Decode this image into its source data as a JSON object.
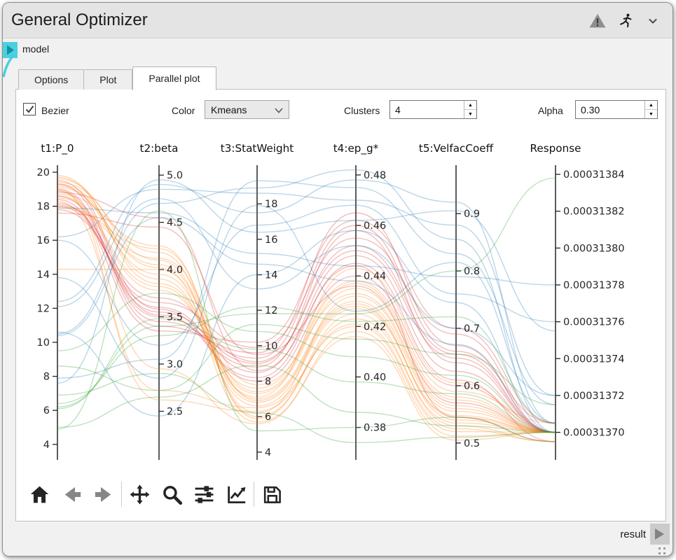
{
  "window": {
    "title": "General Optimizer"
  },
  "titlebar_icons": [
    {
      "name": "warning-icon",
      "color": "#8f8f8f"
    },
    {
      "name": "run-icon",
      "color": "#1a1a1a"
    },
    {
      "name": "collapse-chevron-icon",
      "color": "#4a4a4a"
    }
  ],
  "node": {
    "input_port_label": "model",
    "output_port_label": "result",
    "port_in_color": "#48d1e0",
    "port_in_arrow": "#178fa2",
    "port_out_color": "#cbcbcb",
    "port_out_arrow": "#828282"
  },
  "tabs": [
    {
      "label": "Options",
      "active": false
    },
    {
      "label": "Plot",
      "active": false
    },
    {
      "label": "Parallel plot",
      "active": true
    }
  ],
  "controls": {
    "bezier_label": "Bezier",
    "bezier_checked": true,
    "color_label": "Color",
    "color_value": "Kmeans",
    "clusters_label": "Clusters",
    "clusters_value": "4",
    "alpha_label": "Alpha",
    "alpha_value": "0.30"
  },
  "toolbar": {
    "buttons": [
      {
        "name": "home",
        "enabled": true
      },
      {
        "name": "back",
        "enabled": false
      },
      {
        "name": "forward",
        "enabled": false
      },
      {
        "name": "sep"
      },
      {
        "name": "pan",
        "enabled": true
      },
      {
        "name": "zoom",
        "enabled": true
      },
      {
        "name": "configure-subplots",
        "enabled": true
      },
      {
        "name": "customize",
        "enabled": true
      },
      {
        "name": "sep"
      },
      {
        "name": "save",
        "enabled": true
      }
    ]
  },
  "chart_data": {
    "type": "parallel-coordinates",
    "bezier": true,
    "line_alpha": 0.3,
    "cluster_colors": {
      "blue": "#1f77b4",
      "orange": "#ff7f0e",
      "green": "#2ca02c",
      "red": "#d62728"
    },
    "axes": [
      {
        "title": "t1:P_0",
        "side": "left",
        "min": 3.17,
        "max": 20.33,
        "ticks": [
          4,
          6,
          8,
          10,
          12,
          14,
          16,
          18,
          20
        ],
        "tick_labels": [
          "4",
          "6",
          "8",
          "10",
          "12",
          "14",
          "16",
          "18",
          "20"
        ]
      },
      {
        "title": "t2:beta",
        "side": "right",
        "min": 2.0,
        "max": 5.09,
        "ticks": [
          2.5,
          3.0,
          3.5,
          4.0,
          4.5,
          5.0
        ],
        "tick_labels": [
          "2.5",
          "3.0",
          "3.5",
          "4.0",
          "4.5",
          "5.0"
        ]
      },
      {
        "title": "t3:StatWeight",
        "side": "right",
        "min": 3.64,
        "max": 20.1,
        "ticks": [
          4,
          6,
          8,
          10,
          12,
          14,
          16,
          18
        ],
        "tick_labels": [
          "4",
          "6",
          "8",
          "10",
          "12",
          "14",
          "16",
          "18"
        ]
      },
      {
        "title": "t4:ep_g*",
        "side": "right",
        "min": 0.3677,
        "max": 0.4833,
        "ticks": [
          0.38,
          0.4,
          0.42,
          0.44,
          0.46,
          0.48
        ],
        "tick_labels": [
          "0.38",
          "0.40",
          "0.42",
          "0.44",
          "0.46",
          "0.48"
        ]
      },
      {
        "title": "t5:VelfacCoeff",
        "side": "right",
        "min": 0.473,
        "max": 0.982,
        "ticks": [
          0.5,
          0.6,
          0.7,
          0.8,
          0.9
        ],
        "tick_labels": [
          "0.5",
          "0.6",
          "0.7",
          "0.8",
          "0.9"
        ]
      },
      {
        "title": "Response",
        "side": "right",
        "min": 0.0003136858,
        "max": 0.0003138442,
        "ticks": [
          0.0003137,
          0.00031372,
          0.00031374,
          0.00031376,
          0.00031378,
          0.0003138,
          0.00031382,
          0.00031384
        ],
        "tick_labels": [
          "0.00031370",
          "0.00031372",
          "0.00031374",
          "0.00031376",
          "0.00031378",
          "0.00031380",
          "0.00031382",
          "0.00031384"
        ]
      }
    ],
    "lines": [
      {
        "cluster": "red",
        "values": [
          18.2,
          3.55,
          9.0,
          0.452,
          0.655,
          0.0003137
        ]
      },
      {
        "cluster": "red",
        "values": [
          18.6,
          3.5,
          8.8,
          0.458,
          0.64,
          0.0003137
        ]
      },
      {
        "cluster": "red",
        "values": [
          19.0,
          3.45,
          9.3,
          0.46,
          0.66,
          0.000313705
        ]
      },
      {
        "cluster": "red",
        "values": [
          18.0,
          3.6,
          8.5,
          0.448,
          0.625,
          0.0003137
        ]
      },
      {
        "cluster": "red",
        "values": [
          18.9,
          3.4,
          9.6,
          0.465,
          0.67,
          0.0003137
        ]
      },
      {
        "cluster": "red",
        "values": [
          19.3,
          3.52,
          8.2,
          0.445,
          0.61,
          0.000313695
        ]
      },
      {
        "cluster": "red",
        "values": [
          17.8,
          3.65,
          9.9,
          0.455,
          0.69,
          0.0003137
        ]
      },
      {
        "cluster": "red",
        "values": [
          18.4,
          3.35,
          10.2,
          0.462,
          0.7,
          0.000313705
        ]
      },
      {
        "cluster": "red",
        "values": [
          19.5,
          3.58,
          8.0,
          0.44,
          0.6,
          0.0003137
        ]
      },
      {
        "cluster": "red",
        "values": [
          18.1,
          3.7,
          9.1,
          0.45,
          0.648,
          0.0003137
        ]
      },
      {
        "cluster": "red",
        "values": [
          17.6,
          4.45,
          9.5,
          0.436,
          0.57,
          0.0003137
        ]
      },
      {
        "cluster": "red",
        "values": [
          18.8,
          4.55,
          8.6,
          0.444,
          0.545,
          0.000313695
        ]
      },
      {
        "cluster": "orange",
        "values": [
          19.6,
          4.1,
          6.2,
          0.432,
          0.56,
          0.0003137
        ]
      },
      {
        "cluster": "orange",
        "values": [
          19.2,
          3.95,
          6.8,
          0.428,
          0.545,
          0.0003137
        ]
      },
      {
        "cluster": "orange",
        "values": [
          18.7,
          4.25,
          5.9,
          0.425,
          0.53,
          0.000313695
        ]
      },
      {
        "cluster": "orange",
        "values": [
          19.8,
          3.85,
          7.3,
          0.435,
          0.575,
          0.0003137
        ]
      },
      {
        "cluster": "orange",
        "values": [
          18.3,
          2.72,
          6.5,
          0.42,
          0.52,
          0.0003137
        ]
      },
      {
        "cluster": "orange",
        "values": [
          19.1,
          4.05,
          7.0,
          0.43,
          0.555,
          0.0003137
        ]
      },
      {
        "cluster": "orange",
        "values": [
          18.5,
          3.78,
          7.6,
          0.438,
          0.59,
          0.000313705
        ]
      },
      {
        "cluster": "orange",
        "values": [
          19.4,
          4.18,
          6.0,
          0.423,
          0.535,
          0.0003137
        ]
      },
      {
        "cluster": "orange",
        "values": [
          18.9,
          2.95,
          5.6,
          0.418,
          0.512,
          0.0003137
        ]
      },
      {
        "cluster": "orange",
        "values": [
          19.7,
          3.9,
          6.6,
          0.427,
          0.548,
          0.0003137
        ]
      },
      {
        "cluster": "orange",
        "values": [
          18.0,
          4.12,
          7.8,
          0.433,
          0.565,
          0.0003137
        ]
      },
      {
        "cluster": "orange",
        "values": [
          19.0,
          2.62,
          6.3,
          0.421,
          0.525,
          0.000313695
        ]
      },
      {
        "cluster": "orange",
        "values": [
          18.6,
          3.82,
          7.1,
          0.443,
          0.605,
          0.0003137
        ]
      },
      {
        "cluster": "orange",
        "values": [
          19.3,
          4.02,
          5.7,
          0.416,
          0.505,
          0.0003137
        ]
      },
      {
        "cluster": "orange",
        "values": [
          17.9,
          4.22,
          6.9,
          0.429,
          0.54,
          0.0003137
        ]
      },
      {
        "cluster": "orange",
        "values": [
          14.3,
          4.0,
          7.4,
          0.437,
          0.58,
          0.0003137
        ]
      },
      {
        "cluster": "blue",
        "values": [
          16.2,
          4.85,
          18.6,
          0.47,
          0.88,
          0.00031372
        ]
      },
      {
        "cluster": "blue",
        "values": [
          12.4,
          4.9,
          17.5,
          0.478,
          0.92,
          0.000313705
        ]
      },
      {
        "cluster": "blue",
        "values": [
          10.5,
          4.7,
          18.9,
          0.482,
          0.855,
          0.0003137
        ]
      },
      {
        "cluster": "blue",
        "values": [
          7.6,
          4.95,
          16.4,
          0.462,
          0.905,
          0.000313755
        ]
      },
      {
        "cluster": "blue",
        "values": [
          17.9,
          4.6,
          15.2,
          0.444,
          0.79,
          0.00031378
        ]
      },
      {
        "cluster": "blue",
        "values": [
          10.6,
          2.45,
          14.0,
          0.458,
          0.745,
          0.0003137
        ]
      },
      {
        "cluster": "blue",
        "values": [
          7.9,
          3.05,
          19.3,
          0.475,
          0.83,
          0.000313715
        ]
      },
      {
        "cluster": "blue",
        "values": [
          12.1,
          4.75,
          13.2,
          0.452,
          0.7,
          0.00031372
        ]
      },
      {
        "cluster": "blue",
        "values": [
          16.0,
          3.2,
          16.8,
          0.468,
          0.76,
          0.00031376
        ]
      },
      {
        "cluster": "blue",
        "values": [
          10.4,
          4.55,
          14.6,
          0.438,
          0.672,
          0.0003137
        ]
      },
      {
        "cluster": "blue",
        "values": [
          13.8,
          2.85,
          17.9,
          0.426,
          0.815,
          0.000313705
        ]
      },
      {
        "cluster": "green",
        "values": [
          6.2,
          3.4,
          11.8,
          0.425,
          0.8,
          0.000313838
        ]
      },
      {
        "cluster": "green",
        "values": [
          5.0,
          2.65,
          8.9,
          0.386,
          0.53,
          0.0003137
        ]
      },
      {
        "cluster": "green",
        "values": [
          6.4,
          3.3,
          12.2,
          0.422,
          0.72,
          0.000313705
        ]
      },
      {
        "cluster": "green",
        "values": [
          6.9,
          2.9,
          6.2,
          0.374,
          0.51,
          0.0003137
        ]
      },
      {
        "cluster": "green",
        "values": [
          9.5,
          3.75,
          10.8,
          0.408,
          0.618,
          0.0003137
        ]
      },
      {
        "cluster": "green",
        "values": [
          4.9,
          4.62,
          5.2,
          0.38,
          0.545,
          0.000313695
        ]
      },
      {
        "cluster": "green",
        "values": [
          6.1,
          3.48,
          9.8,
          0.398,
          0.586,
          0.0003137
        ]
      },
      {
        "cluster": "green",
        "values": [
          8.6,
          2.72,
          11.2,
          0.415,
          0.655,
          0.000313715
        ]
      }
    ]
  }
}
